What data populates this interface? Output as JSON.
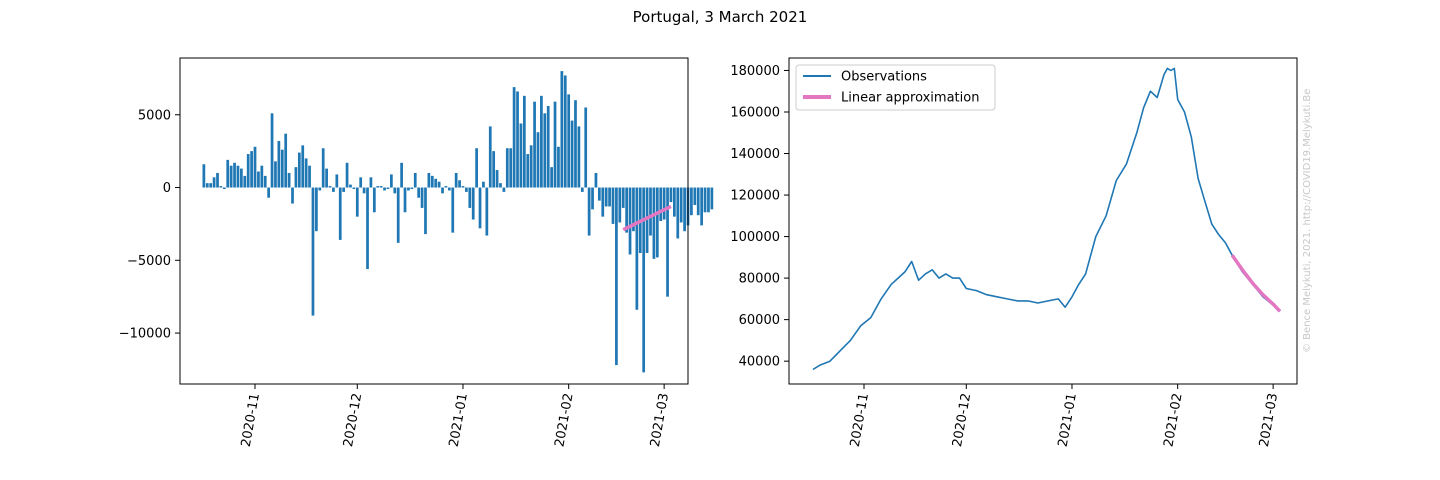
{
  "figure": {
    "suptitle": "Portugal, 3 March 2021",
    "watermark": "© Bence Melykuti, 2021. http://COVID19.Melykuti.Be"
  },
  "colors": {
    "observations": "#1f77b4",
    "approximation": "#e377c2"
  },
  "chart_data": [
    {
      "type": "bar",
      "x_start": "2020-10-17",
      "x_end": "2021-03-03",
      "ylim": [
        -13500,
        8900
      ],
      "xlim": [
        "2020-10-10",
        "2021-03-08"
      ],
      "yticks": [
        5000,
        0,
        -5000,
        -10000
      ],
      "ytick_labels": [
        "5000",
        "0",
        "−5000",
        "−10000"
      ],
      "xticks": [
        "2020-11-01",
        "2020-12-01",
        "2021-01-01",
        "2021-02-01",
        "2021-03-01"
      ],
      "xtick_labels": [
        "2020-11",
        "2020-12",
        "2021-01",
        "2021-02",
        "2021-03"
      ],
      "values": [
        1600,
        300,
        300,
        700,
        1000,
        100,
        -100,
        1900,
        1500,
        1700,
        1500,
        1300,
        800,
        2300,
        2500,
        2800,
        1100,
        1500,
        800,
        -700,
        5100,
        1800,
        3200,
        2600,
        3700,
        1000,
        -1100,
        1400,
        2400,
        2900,
        2000,
        1500,
        -8800,
        -3000,
        -200,
        2700,
        1300,
        100,
        -300,
        900,
        -3600,
        -300,
        1700,
        200,
        -100,
        -2000,
        700,
        -400,
        -5600,
        700,
        -1700,
        100,
        100,
        -200,
        -100,
        900,
        -400,
        -3800,
        1700,
        -1700,
        -200,
        -100,
        1000,
        -700,
        -1400,
        -3200,
        1000,
        800,
        600,
        400,
        -400,
        100,
        -200,
        -3100,
        1000,
        500,
        100,
        -300,
        -1400,
        -2200,
        2700,
        -2800,
        400,
        -3300,
        4200,
        2500,
        1200,
        300,
        -300,
        2700,
        2700,
        6900,
        6600,
        4400,
        6300,
        2300,
        2900,
        5900,
        3800,
        6300,
        5100,
        5600,
        1400,
        5900,
        2800,
        8000,
        7700,
        6400,
        4600,
        6000,
        4200,
        -300,
        5500,
        -3300,
        -1500,
        1000,
        -900,
        -2000,
        -1300,
        -1300,
        -2500,
        -12200,
        -2400,
        -1400,
        -3100,
        -4600,
        -3000,
        -8400,
        -4500,
        -12700,
        -4500,
        -3300,
        -4900,
        -4800,
        -2300,
        -2200,
        -7500,
        -1000,
        -2000,
        -3500,
        -2400,
        -3000,
        -2600,
        -1900,
        -1200,
        -1900,
        -2600,
        -1700,
        -1700,
        -1500
      ],
      "series": [
        {
          "name": "Linear approximation",
          "x": [
            "2021-02-17",
            "2021-03-03"
          ],
          "y": [
            -2900,
            -1300
          ]
        }
      ]
    },
    {
      "type": "line",
      "ylim": [
        29000,
        186000
      ],
      "xlim": [
        "2020-10-10",
        "2021-03-08"
      ],
      "yticks": [
        40000,
        60000,
        80000,
        100000,
        120000,
        140000,
        160000,
        180000
      ],
      "ytick_labels": [
        "40000",
        "60000",
        "80000",
        "100000",
        "120000",
        "140000",
        "160000",
        "180000"
      ],
      "xticks": [
        "2020-11-01",
        "2020-12-01",
        "2021-01-01",
        "2021-02-01",
        "2021-03-01"
      ],
      "xtick_labels": [
        "2020-11",
        "2020-12",
        "2021-01",
        "2021-02",
        "2021-03"
      ],
      "legend": {
        "loc": "upper-left"
      },
      "series": [
        {
          "name": "Observations",
          "x": [
            "2020-10-17",
            "2020-10-19",
            "2020-10-22",
            "2020-10-25",
            "2020-10-28",
            "2020-10-31",
            "2020-11-03",
            "2020-11-06",
            "2020-11-09",
            "2020-11-11",
            "2020-11-13",
            "2020-11-15",
            "2020-11-17",
            "2020-11-19",
            "2020-11-21",
            "2020-11-23",
            "2020-11-25",
            "2020-11-27",
            "2020-11-29",
            "2020-12-01",
            "2020-12-04",
            "2020-12-07",
            "2020-12-10",
            "2020-12-13",
            "2020-12-16",
            "2020-12-19",
            "2020-12-22",
            "2020-12-25",
            "2020-12-28",
            "2020-12-30",
            "2021-01-01",
            "2021-01-03",
            "2021-01-05",
            "2021-01-08",
            "2021-01-11",
            "2021-01-14",
            "2021-01-17",
            "2021-01-20",
            "2021-01-22",
            "2021-01-24",
            "2021-01-26",
            "2021-01-28",
            "2021-01-29",
            "2021-01-30",
            "2021-01-31",
            "2021-02-01",
            "2021-02-03",
            "2021-02-05",
            "2021-02-07",
            "2021-02-09",
            "2021-02-11",
            "2021-02-13",
            "2021-02-15",
            "2021-02-17",
            "2021-02-20",
            "2021-02-23",
            "2021-02-26",
            "2021-03-01",
            "2021-03-03"
          ],
          "y": [
            36000,
            38000,
            40000,
            45000,
            50000,
            57000,
            61000,
            70000,
            77000,
            80000,
            83000,
            88000,
            79000,
            82000,
            84000,
            80000,
            82000,
            80000,
            80000,
            75000,
            74000,
            72000,
            71000,
            70000,
            69000,
            69000,
            68000,
            69000,
            70000,
            66000,
            71000,
            77000,
            82000,
            100000,
            110000,
            127000,
            135000,
            150000,
            162000,
            170000,
            167000,
            178000,
            181000,
            180000,
            181000,
            166000,
            160000,
            148000,
            128000,
            117000,
            106000,
            101000,
            97000,
            91000,
            83000,
            77000,
            71000,
            67000,
            64000
          ]
        },
        {
          "name": "Linear approximation",
          "x": [
            "2021-02-17",
            "2021-02-20",
            "2021-02-23",
            "2021-02-26",
            "2021-03-01",
            "2021-03-03"
          ],
          "y": [
            91000,
            84000,
            77500,
            72000,
            67500,
            64000
          ]
        }
      ]
    }
  ]
}
